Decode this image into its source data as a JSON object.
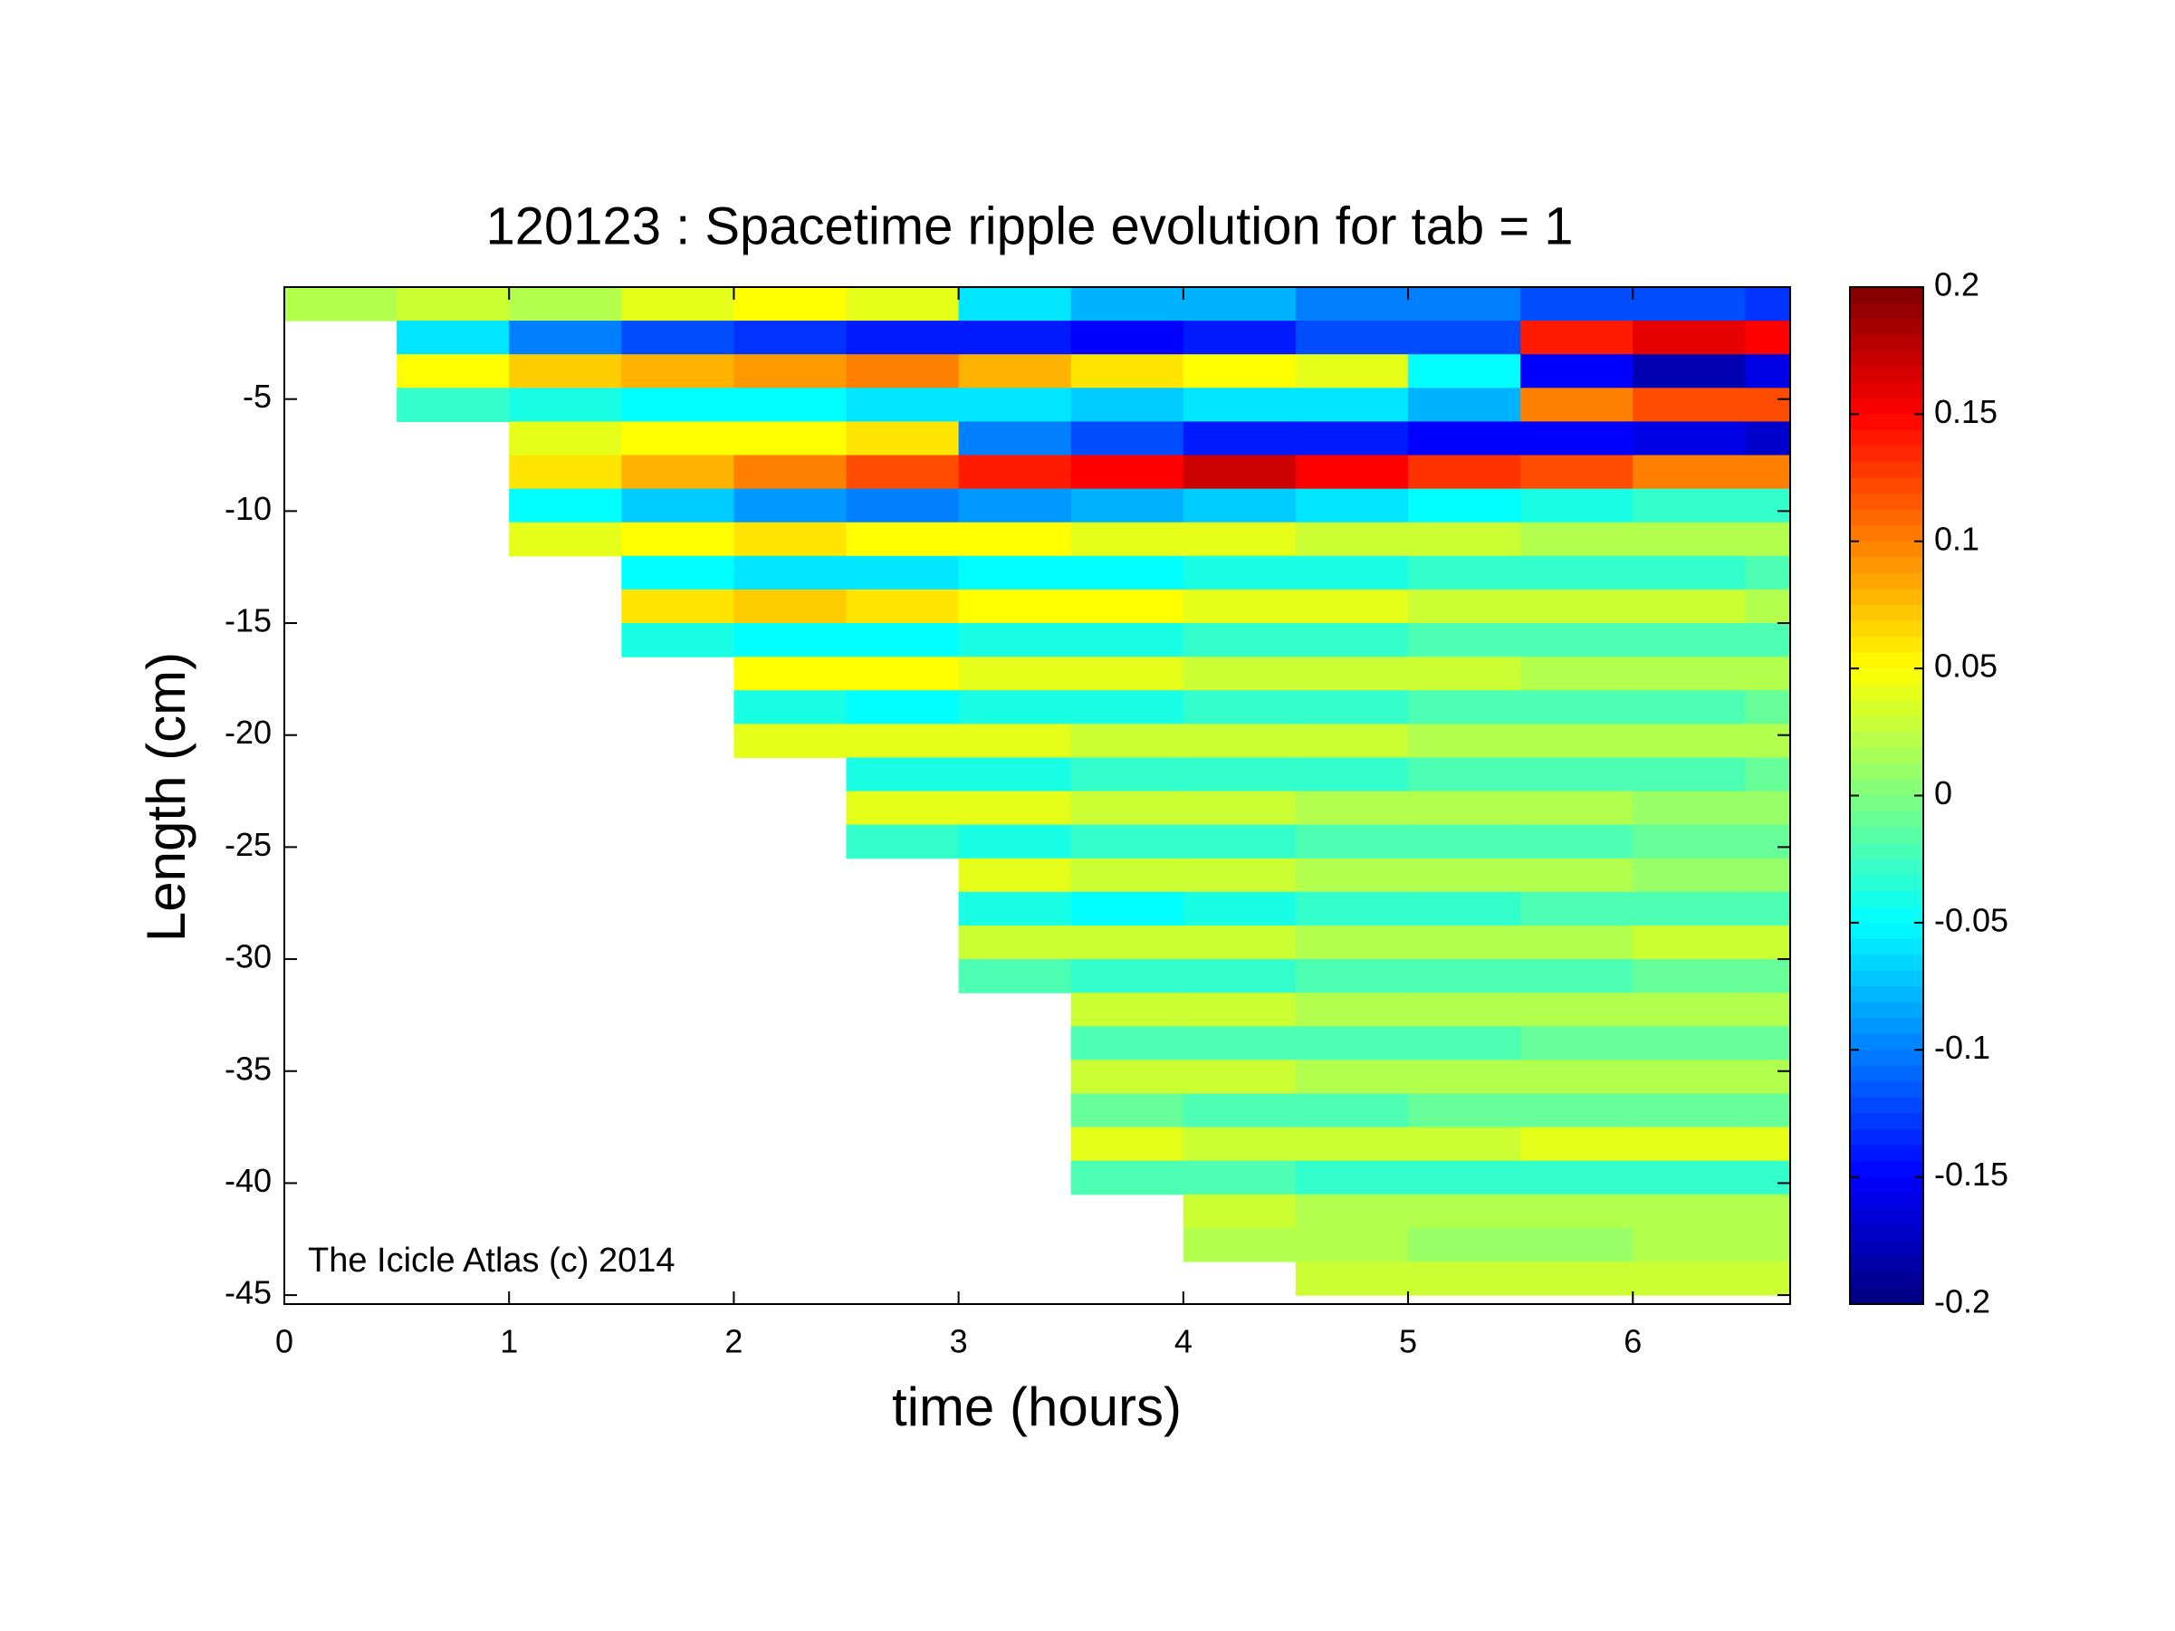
{
  "chart_data": {
    "type": "heatmap",
    "title": "120123 : Spacetime ripple evolution for tab = 1",
    "x_label": "time (hours)",
    "y_label": "Length (cm)",
    "annotation": "The Icicle Atlas (c) 2014",
    "colormap": "jet",
    "xlim": [
      0,
      6.7
    ],
    "ylim": [
      -45.4,
      0
    ],
    "xticks": [
      0,
      1,
      2,
      3,
      4,
      5,
      6
    ],
    "yticks": [
      -5,
      -10,
      -15,
      -20,
      -25,
      -30,
      -35,
      -40,
      -45
    ],
    "clim": [
      -0.2,
      0.2
    ],
    "cticks": [
      0.2,
      0.15,
      0.1,
      0.05,
      0,
      -0.05,
      -0.1,
      -0.15,
      -0.2
    ],
    "x": [
      0.25,
      0.75,
      1.25,
      1.75,
      2.25,
      2.75,
      3.25,
      3.75,
      4.25,
      4.75,
      5.25,
      5.75,
      6.25,
      6.75
    ],
    "y": [
      -0.75,
      -2.25,
      -3.75,
      -5.25,
      -6.75,
      -8.25,
      -9.75,
      -11.25,
      -12.75,
      -14.25,
      -15.75,
      -17.25,
      -18.75,
      -20.25,
      -21.75,
      -23.25,
      -24.75,
      -26.25,
      -27.75,
      -29.25,
      -30.75,
      -32.25,
      -33.75,
      -35.25,
      -36.75,
      -38.25,
      -39.75,
      -41.25,
      -42.75,
      -44.25
    ],
    "z": [
      [
        0.02,
        0.03,
        0.02,
        0.04,
        0.05,
        0.04,
        -0.06,
        -0.08,
        -0.08,
        -0.1,
        -0.1,
        -0.12,
        -0.12,
        -0.13
      ],
      [
        null,
        -0.06,
        -0.1,
        -0.12,
        -0.13,
        -0.14,
        -0.14,
        -0.15,
        -0.14,
        -0.12,
        -0.12,
        0.14,
        0.16,
        0.15
      ],
      [
        null,
        0.05,
        0.07,
        0.08,
        0.09,
        0.1,
        0.08,
        0.06,
        0.05,
        0.04,
        -0.05,
        -0.15,
        -0.18,
        -0.16
      ],
      [
        null,
        -0.03,
        -0.04,
        -0.05,
        -0.05,
        -0.06,
        -0.06,
        -0.07,
        -0.06,
        -0.06,
        -0.08,
        0.1,
        0.12,
        0.12
      ],
      [
        null,
        null,
        0.04,
        0.05,
        0.05,
        0.06,
        -0.1,
        -0.12,
        -0.14,
        -0.14,
        -0.15,
        -0.15,
        -0.16,
        -0.17
      ],
      [
        null,
        null,
        0.06,
        0.08,
        0.1,
        0.12,
        0.14,
        0.15,
        0.17,
        0.15,
        0.13,
        0.12,
        0.1,
        0.1
      ],
      [
        null,
        null,
        -0.05,
        -0.07,
        -0.09,
        -0.1,
        -0.09,
        -0.08,
        -0.07,
        -0.06,
        -0.05,
        -0.04,
        -0.03,
        -0.03
      ],
      [
        null,
        null,
        0.04,
        0.05,
        0.06,
        0.05,
        0.05,
        0.04,
        0.04,
        0.03,
        0.03,
        0.02,
        0.02,
        0.02
      ],
      [
        null,
        null,
        null,
        -0.05,
        -0.06,
        -0.06,
        -0.05,
        -0.05,
        -0.04,
        -0.04,
        -0.03,
        -0.03,
        -0.03,
        -0.02
      ],
      [
        null,
        null,
        null,
        0.06,
        0.07,
        0.06,
        0.05,
        0.05,
        0.04,
        0.04,
        0.03,
        0.03,
        0.03,
        0.02
      ],
      [
        null,
        null,
        null,
        -0.04,
        -0.05,
        -0.05,
        -0.04,
        -0.04,
        -0.03,
        -0.03,
        -0.02,
        -0.02,
        -0.02,
        -0.02
      ],
      [
        null,
        null,
        null,
        null,
        0.05,
        0.05,
        0.04,
        0.04,
        0.03,
        0.03,
        0.03,
        0.02,
        0.02,
        0.02
      ],
      [
        null,
        null,
        null,
        null,
        -0.04,
        -0.05,
        -0.04,
        -0.04,
        -0.03,
        -0.03,
        -0.02,
        -0.02,
        -0.02,
        -0.01
      ],
      [
        null,
        null,
        null,
        null,
        0.04,
        0.04,
        0.04,
        0.03,
        0.03,
        0.03,
        0.02,
        0.02,
        0.02,
        0.02
      ],
      [
        null,
        null,
        null,
        null,
        null,
        -0.04,
        -0.04,
        -0.03,
        -0.03,
        -0.03,
        -0.02,
        -0.02,
        -0.02,
        -0.01
      ],
      [
        null,
        null,
        null,
        null,
        null,
        0.04,
        0.04,
        0.03,
        0.03,
        0.02,
        0.02,
        0.02,
        0.01,
        0.01
      ],
      [
        null,
        null,
        null,
        null,
        null,
        -0.03,
        -0.04,
        -0.03,
        -0.03,
        -0.02,
        -0.02,
        -0.02,
        -0.01,
        -0.01
      ],
      [
        null,
        null,
        null,
        null,
        null,
        null,
        0.04,
        0.03,
        0.03,
        0.02,
        0.02,
        0.02,
        0.01,
        0.01
      ],
      [
        null,
        null,
        null,
        null,
        null,
        null,
        -0.04,
        -0.05,
        -0.04,
        -0.03,
        -0.03,
        -0.02,
        -0.02,
        -0.02
      ],
      [
        null,
        null,
        null,
        null,
        null,
        null,
        0.03,
        0.03,
        0.03,
        0.02,
        0.02,
        0.02,
        0.03,
        0.03
      ],
      [
        null,
        null,
        null,
        null,
        null,
        null,
        -0.02,
        -0.03,
        -0.03,
        -0.02,
        -0.02,
        -0.02,
        -0.01,
        -0.01
      ],
      [
        null,
        null,
        null,
        null,
        null,
        null,
        null,
        0.03,
        0.03,
        0.02,
        0.02,
        0.02,
        0.02,
        0.02
      ],
      [
        null,
        null,
        null,
        null,
        null,
        null,
        null,
        -0.02,
        -0.02,
        -0.02,
        -0.02,
        -0.01,
        -0.01,
        -0.01
      ],
      [
        null,
        null,
        null,
        null,
        null,
        null,
        null,
        0.03,
        0.03,
        0.02,
        0.02,
        0.02,
        0.02,
        0.02
      ],
      [
        null,
        null,
        null,
        null,
        null,
        null,
        null,
        -0.01,
        -0.02,
        -0.02,
        -0.01,
        -0.01,
        -0.01,
        -0.01
      ],
      [
        null,
        null,
        null,
        null,
        null,
        null,
        null,
        0.04,
        0.03,
        0.03,
        0.03,
        0.04,
        0.04,
        0.04
      ],
      [
        null,
        null,
        null,
        null,
        null,
        null,
        null,
        -0.02,
        -0.02,
        -0.03,
        -0.03,
        -0.03,
        -0.03,
        -0.03
      ],
      [
        null,
        null,
        null,
        null,
        null,
        null,
        null,
        null,
        0.03,
        0.02,
        0.02,
        0.02,
        0.02,
        0.02
      ],
      [
        null,
        null,
        null,
        null,
        null,
        null,
        null,
        null,
        0.02,
        0.02,
        0.01,
        0.01,
        0.02,
        0.02
      ],
      [
        null,
        null,
        null,
        null,
        null,
        null,
        null,
        null,
        null,
        0.03,
        0.03,
        0.03,
        0.03,
        0.03
      ]
    ]
  }
}
